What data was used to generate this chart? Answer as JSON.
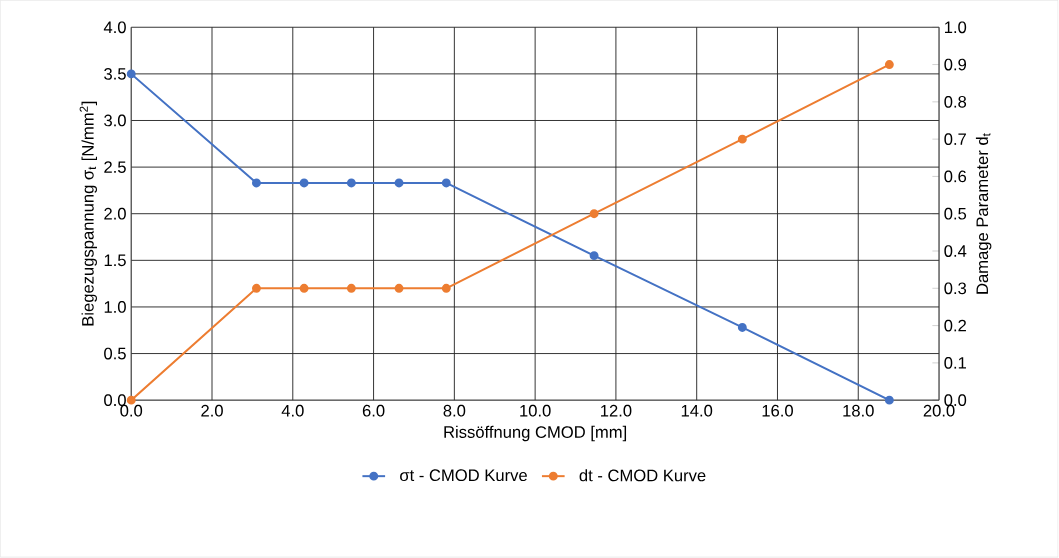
{
  "chart_data": {
    "type": "line",
    "xlabel": "Rissöffnung CMOD [mm]",
    "ylabel": "Biegezugspannung  σ$_{t}$  [N/mm$^{2}$]",
    "y2label": "Damage Parameter  d$_{t}$",
    "x": [
      0,
      3.1,
      4.28,
      5.45,
      6.63,
      7.8,
      11.46,
      15.13,
      18.77
    ],
    "series": [
      {
        "name": "σt - CMOD Kurve",
        "color": "#4472c4",
        "values": [
          3.5,
          2.33,
          2.33,
          2.33,
          2.33,
          2.33,
          1.55,
          0.78,
          0
        ]
      },
      {
        "name": "dt - CMOD Kurve",
        "color": "#ed7d31",
        "axis": "y2",
        "values": [
          0,
          0.3,
          0.3,
          0.3,
          0.3,
          0.3,
          0.5,
          0.7,
          0.9
        ]
      }
    ],
    "xlim": [
      0,
      20
    ],
    "xticks": [
      {
        "value": 0,
        "label": "0.0"
      },
      {
        "value": 2,
        "label": "2.0"
      },
      {
        "value": 4,
        "label": "4.0"
      },
      {
        "value": 6,
        "label": "6.0"
      },
      {
        "value": 8,
        "label": "8.0"
      },
      {
        "value": 10,
        "label": "10.0"
      },
      {
        "value": 12,
        "label": "12.0"
      },
      {
        "value": 14,
        "label": "14.0"
      },
      {
        "value": 16,
        "label": "16.0"
      },
      {
        "value": 18,
        "label": "18.0"
      },
      {
        "value": 20,
        "label": "20.0"
      }
    ],
    "ylim": [
      0,
      4
    ],
    "yticks": [
      {
        "value": 0,
        "label": "0.0"
      },
      {
        "value": 0.5,
        "label": "0.5"
      },
      {
        "value": 1,
        "label": "1.0"
      },
      {
        "value": 1.5,
        "label": "1.5"
      },
      {
        "value": 2,
        "label": "2.0"
      },
      {
        "value": 2.5,
        "label": "2.5"
      },
      {
        "value": 3,
        "label": "3.0"
      },
      {
        "value": 3.5,
        "label": "3.5"
      },
      {
        "value": 4,
        "label": "4.0"
      }
    ],
    "y2lim": [
      0,
      1
    ],
    "y2ticks": [
      {
        "value": 0,
        "label": "0.0"
      },
      {
        "value": 0.1,
        "label": "0.1"
      },
      {
        "value": 0.2,
        "label": "0.2"
      },
      {
        "value": 0.3,
        "label": "0.3"
      },
      {
        "value": 0.4,
        "label": "0.4"
      },
      {
        "value": 0.5,
        "label": "0.5"
      },
      {
        "value": 0.6,
        "label": "0.6"
      },
      {
        "value": 0.7,
        "label": "0.7"
      },
      {
        "value": 0.8,
        "label": "0.8"
      },
      {
        "value": 0.9,
        "label": "0.9"
      },
      {
        "value": 1,
        "label": "1.0"
      }
    ],
    "grid": true,
    "legend": "bottom",
    "marker": "circle",
    "line_style": "solid"
  }
}
